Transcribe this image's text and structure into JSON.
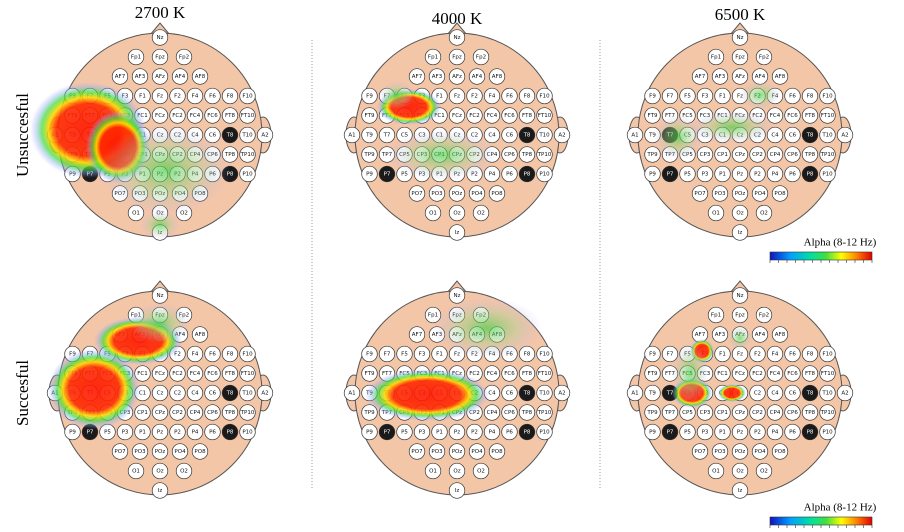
{
  "columns": [
    "2700 K",
    "4000 K",
    "6500 K"
  ],
  "rows": [
    "Unsuccesful",
    "Succesful"
  ],
  "colorbar_label": "Alpha (8-12 Hz)",
  "electrodes": [
    [
      "Nz"
    ],
    [
      "Fp1",
      "Fpz",
      "Fp2"
    ],
    [
      "AF7",
      "AF3",
      "AFz",
      "AF4",
      "AF8"
    ],
    [
      "F9",
      "F7",
      "F5",
      "F3",
      "F1",
      "Fz",
      "F2",
      "F4",
      "F6",
      "F8",
      "F10"
    ],
    [
      "FT9",
      "FT7",
      "FC5",
      "FC3",
      "FC1",
      "FCz",
      "FC2",
      "FC4",
      "FC6",
      "FT8",
      "FT10"
    ],
    [
      "A1",
      "T9",
      "T7",
      "C5",
      "C3",
      "C1",
      "Cz",
      "C2",
      "C4",
      "C6",
      "T8",
      "T10",
      "A2"
    ],
    [
      "TP9",
      "TP7",
      "CP5",
      "CP3",
      "CP1",
      "CPz",
      "CP2",
      "CP4",
      "CP6",
      "TP8",
      "TP10"
    ],
    [
      "P9",
      "P7",
      "P5",
      "P3",
      "P1",
      "Pz",
      "P2",
      "P4",
      "P6",
      "P8",
      "P10"
    ],
    [
      "PO7",
      "PO3",
      "POz",
      "PO4",
      "PO8"
    ],
    [
      "O1",
      "Oz",
      "O2"
    ],
    [
      "Iz"
    ]
  ]
}
